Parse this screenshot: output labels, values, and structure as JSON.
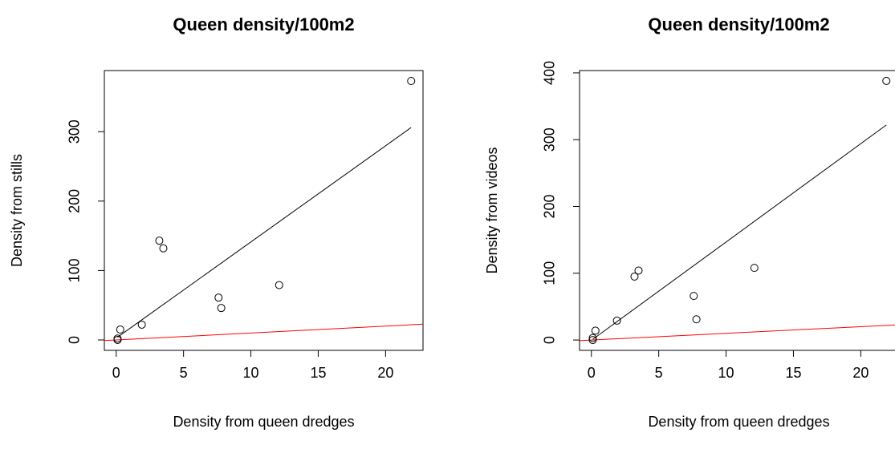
{
  "chart_data": [
    {
      "type": "scatter",
      "title": "Queen density/100m2",
      "xlabel": "Density from queen dredges",
      "ylabel": "Density from stills",
      "x": [
        0.1,
        0.1,
        0.3,
        1.9,
        3.2,
        3.5,
        7.6,
        7.8,
        12.1,
        21.9
      ],
      "values": [
        0,
        2,
        15,
        22,
        143,
        132,
        61,
        46,
        79,
        373
      ],
      "color": "#000000",
      "lines": [
        {
          "color": "#000000",
          "x": [
            0.1,
            21.9
          ],
          "values": [
            4,
            306
          ]
        },
        {
          "color": "#ff0000",
          "x": [
            -0.88,
            22.78
          ],
          "values": [
            -0.88,
            22.78
          ]
        }
      ],
      "xlim": [
        -0.88,
        22.78
      ],
      "ylim": [
        -15,
        388
      ],
      "xticks": [
        0,
        5,
        10,
        15,
        20
      ],
      "yticks": [
        0,
        100,
        200,
        300
      ]
    },
    {
      "type": "scatter",
      "title": "Queen density/100m2",
      "xlabel": "Density from queen dredges",
      "ylabel": "Density from videos",
      "x": [
        0.1,
        0.1,
        0.3,
        1.9,
        3.2,
        3.5,
        7.6,
        7.8,
        12.1,
        21.9
      ],
      "values": [
        0,
        3,
        14,
        29,
        95,
        104,
        66,
        31,
        108,
        388
      ],
      "color": "#000000",
      "lines": [
        {
          "color": "#000000",
          "x": [
            0.1,
            21.9
          ],
          "values": [
            1,
            322
          ]
        },
        {
          "color": "#ff0000",
          "x": [
            -0.88,
            22.78
          ],
          "values": [
            -0.88,
            22.78
          ]
        }
      ],
      "xlim": [
        -0.88,
        22.78
      ],
      "ylim": [
        -15.5,
        403.5
      ],
      "xticks": [
        0,
        5,
        10,
        15,
        20
      ],
      "yticks": [
        0,
        100,
        200,
        300,
        400
      ]
    }
  ]
}
